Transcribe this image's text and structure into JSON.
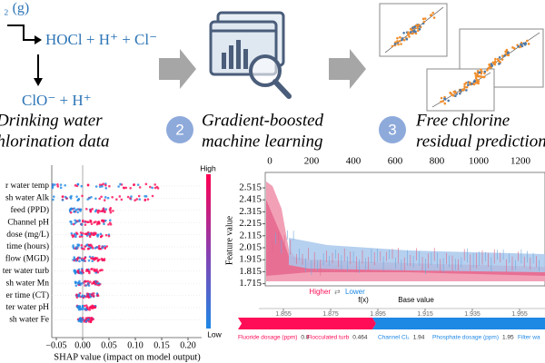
{
  "chemistry": {
    "reactant": "₂ (g)",
    "products": "HOCl + H⁺ + Cl⁻",
    "dissociation": "ClO⁻ + H⁺"
  },
  "steps": [
    {
      "lines": [
        "Drinking water",
        "chlorination data"
      ]
    },
    {
      "number": "2",
      "lines": [
        "Gradient-boosted",
        "machine learning"
      ]
    },
    {
      "number": "3",
      "lines": [
        "Free chlorine",
        "residual prediction"
      ]
    }
  ],
  "shap": {
    "features": [
      "r water temp",
      "sh water Alk",
      "feed (PPD)",
      "Channel pH",
      "dose (mg/L)",
      "time (hours)",
      "flow (MGD)",
      "ter water turb",
      "sh water Mn",
      "er time (CT)",
      "ter water pH",
      "sh water Fe"
    ],
    "xticks": [
      "−0.05",
      "0.00",
      "0.05",
      "0.10",
      "0.15",
      "0.20"
    ],
    "xlabel": "SHAP value (impact on model output)",
    "colorbar": {
      "high": "High",
      "low": "Low",
      "label": "Feature value"
    }
  },
  "timeseries": {
    "xticks": [
      "0",
      "200",
      "400",
      "600",
      "800",
      "1000",
      "1200"
    ],
    "yticks": [
      "2.515",
      "2.415",
      "2.315",
      "2.215",
      "2.115",
      "2.015",
      "1.915",
      "1.815",
      "1.715"
    ]
  },
  "force_plot": {
    "higher": "Higher",
    "lower": "Lower",
    "fx": "f(x)",
    "base": "Base value",
    "ticks": [
      "1.855",
      "1.875",
      "1.895",
      "1.915",
      "1.935",
      "1.955"
    ],
    "features": [
      {
        "name": "Fluoride dosage (ppm)",
        "value": "0.8"
      },
      {
        "name": "Flocculated turb",
        "value": "0.464"
      },
      {
        "name": "Channel Cl₂",
        "value": "1.94"
      },
      {
        "name": "Phosphate dosage (ppm)",
        "value": "1.95"
      },
      {
        "name": "Filter wa"
      }
    ]
  }
}
